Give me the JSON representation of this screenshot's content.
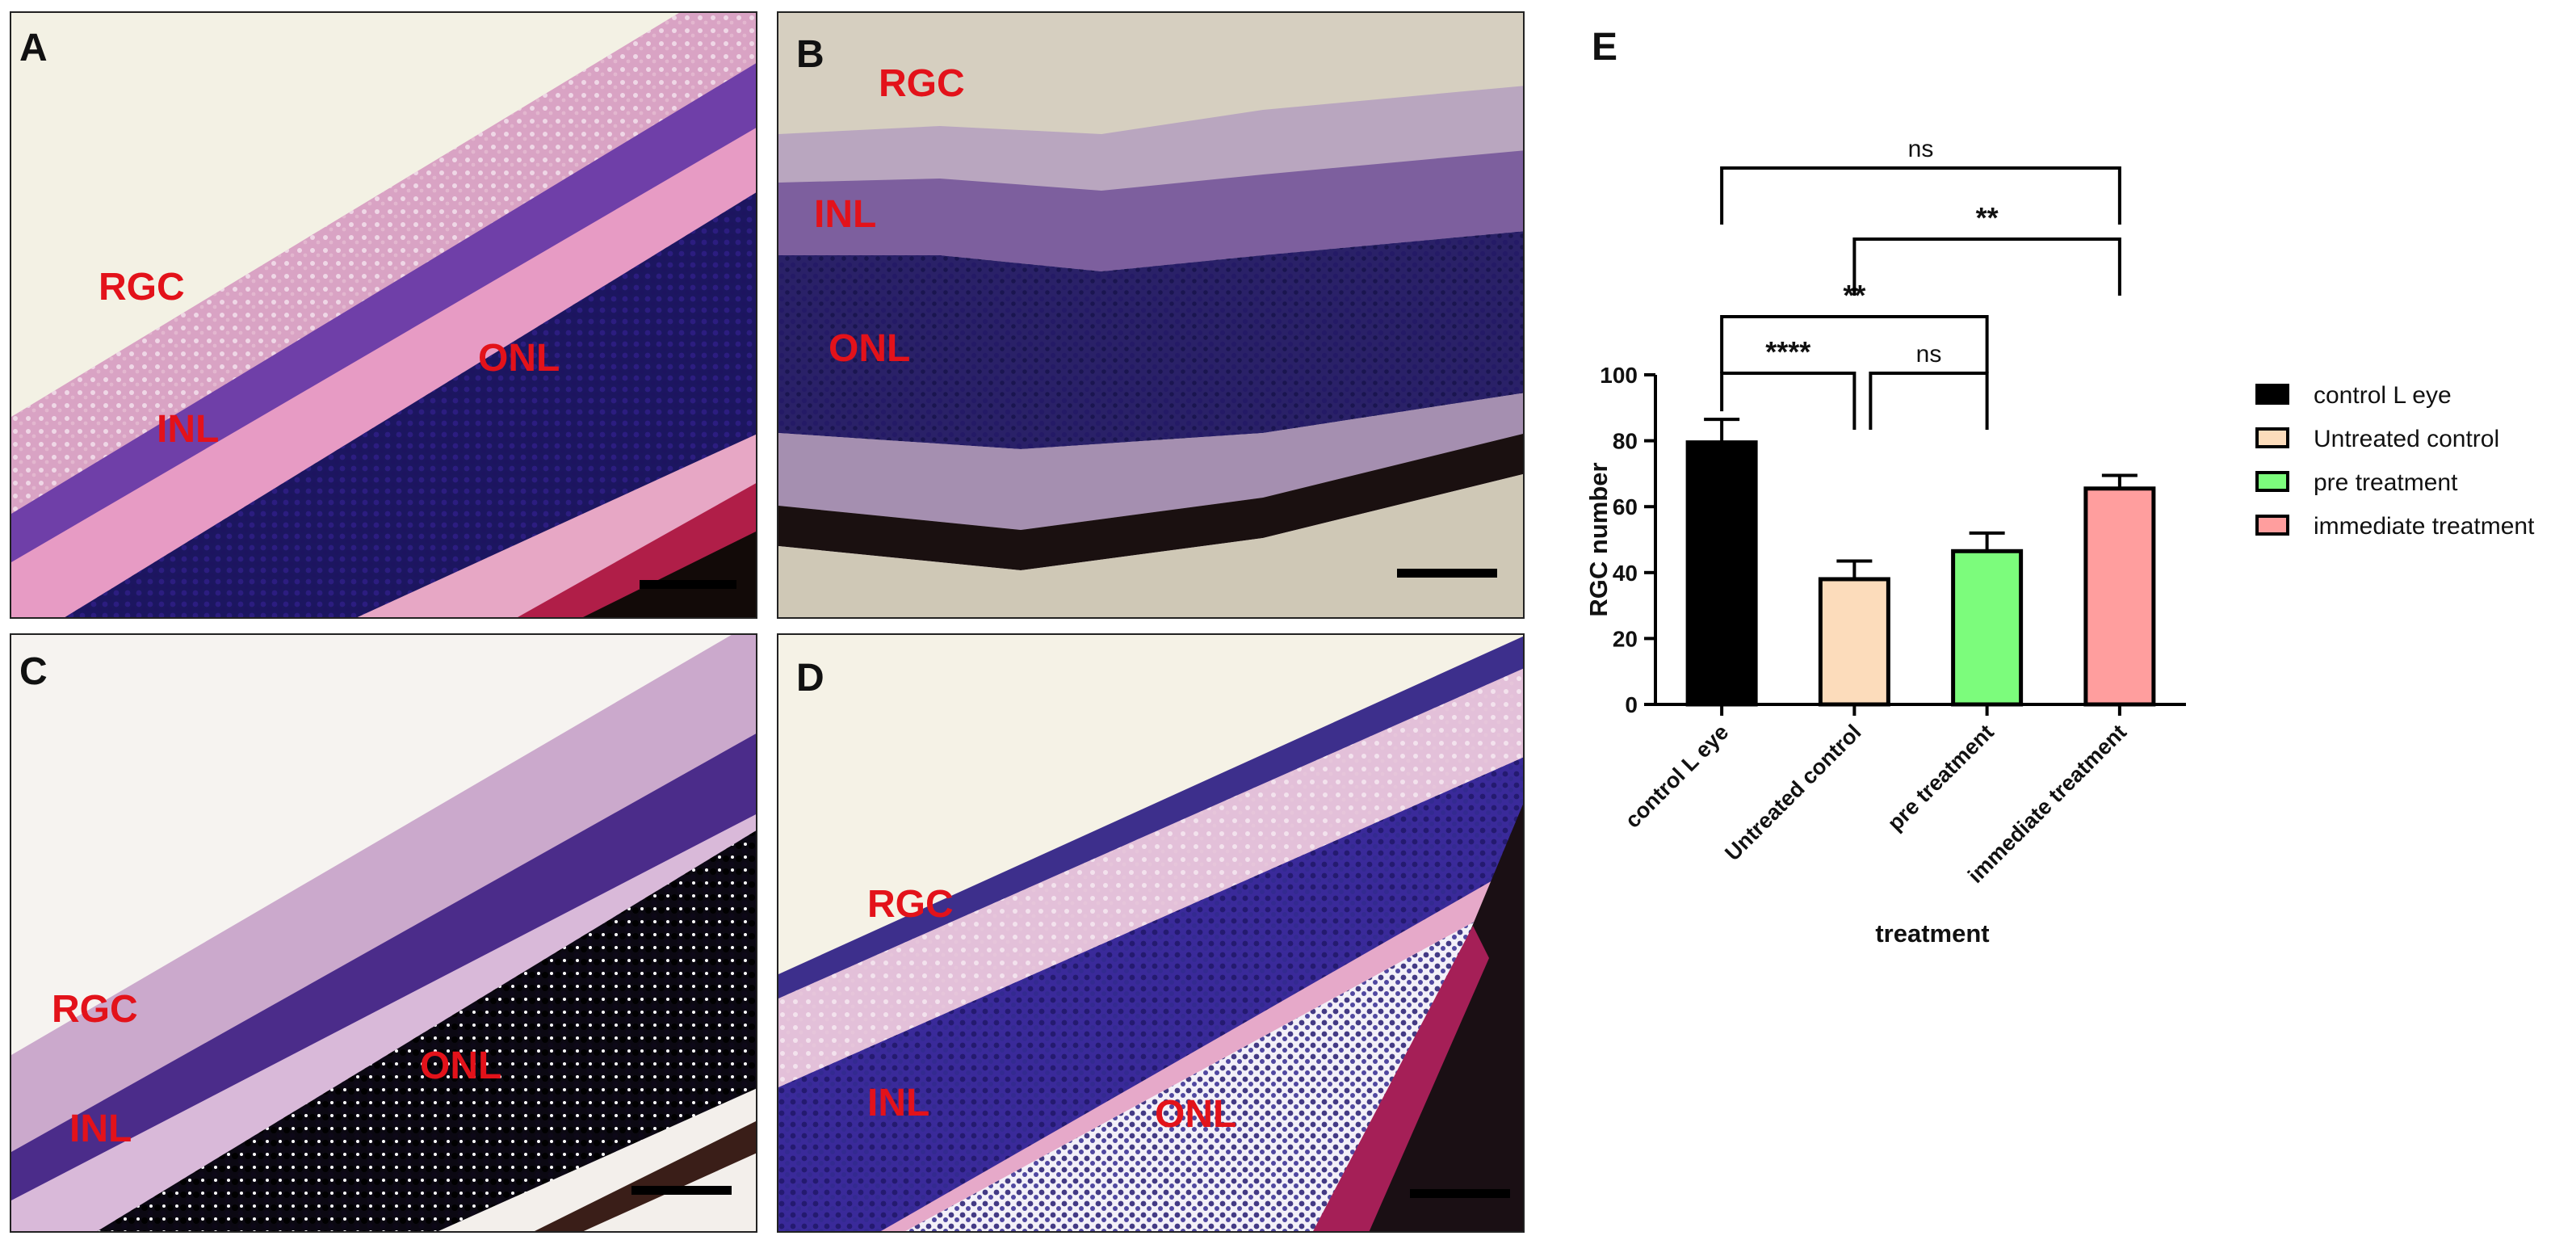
{
  "figure": {
    "panels": [
      {
        "letter": "A",
        "labels": {
          "rgc": "RGC",
          "inl": "INL",
          "onl": "ONL"
        }
      },
      {
        "letter": "B",
        "labels": {
          "rgc": "RGC",
          "inl": "INL",
          "onl": "ONL"
        }
      },
      {
        "letter": "C",
        "labels": {
          "rgc": "RGC",
          "inl": "INL",
          "onl": "ONL"
        }
      },
      {
        "letter": "D",
        "labels": {
          "rgc": "RGC",
          "inl": "INL",
          "onl": "ONL"
        }
      }
    ]
  },
  "chart_data": {
    "panel_letter": "E",
    "type": "bar",
    "categories": [
      "control  L eye",
      "Untreated control",
      "pre treatment",
      "immediate treatment"
    ],
    "values": [
      79.5,
      38.0,
      46.5,
      65.5
    ],
    "errors": [
      7.0,
      5.5,
      5.5,
      4.0
    ],
    "colors": [
      "#000000",
      "#fcdcbb",
      "#7cfc7c",
      "#ff9e9e"
    ],
    "xlabel": "treatment",
    "ylabel": "RGC  number",
    "ylim": [
      0,
      100
    ],
    "yticks": [
      0,
      20,
      40,
      60,
      80,
      100
    ],
    "legend": {
      "position": "right",
      "entries": [
        "control  L eye",
        "Untreated control",
        "pre treatment",
        "immediate treatment"
      ]
    },
    "comparisons": [
      {
        "from": "control  L eye",
        "to": "Untreated control",
        "label": "****"
      },
      {
        "from": "Untreated control",
        "to": "pre treatment",
        "label": "ns"
      },
      {
        "from": "control  L eye",
        "to": "pre treatment",
        "label": "**"
      },
      {
        "from": "Untreated control",
        "to": "immediate treatment",
        "label": "**"
      },
      {
        "from": "control  L eye",
        "to": "immediate treatment",
        "label": "ns"
      }
    ]
  }
}
